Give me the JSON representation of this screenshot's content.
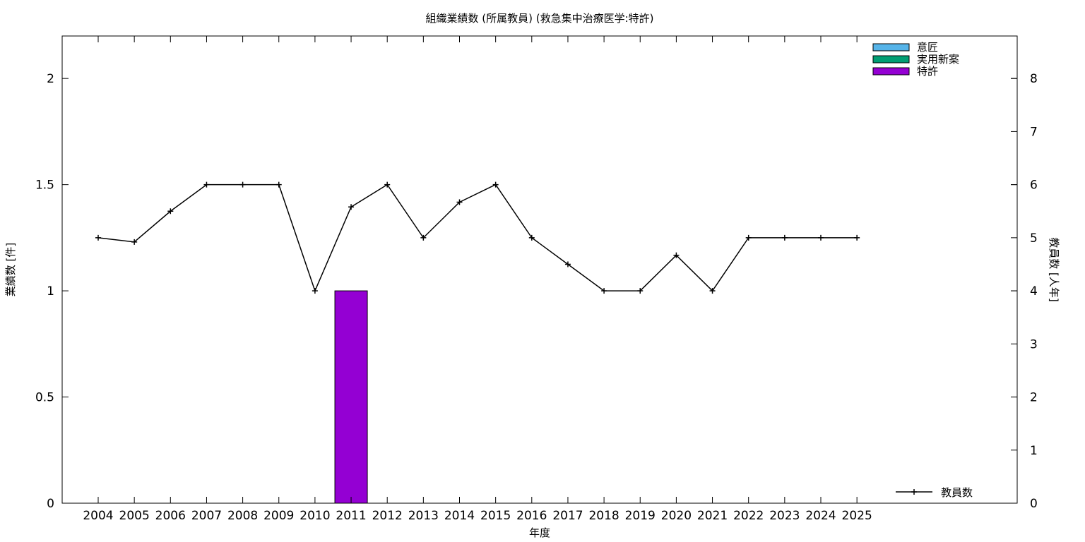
{
  "chart_data": {
    "type": "bar",
    "title": "組織業績数 (所属教員) (救急集中治療医学:特許)",
    "xlabel": "年度",
    "ylabel": "業績数 [件]",
    "y2label": "教員数 [人年]",
    "ylim": [
      0,
      2.2
    ],
    "y2lim": [
      0,
      8.8
    ],
    "yticks": [
      "0",
      "0.5",
      "1",
      "1.5",
      "2"
    ],
    "y2ticks": [
      "0",
      "1",
      "2",
      "3",
      "4",
      "5",
      "6",
      "7",
      "8"
    ],
    "categories": [
      "2004",
      "2005",
      "2006",
      "2007",
      "2008",
      "2009",
      "2010",
      "2011",
      "2012",
      "2013",
      "2014",
      "2015",
      "2016",
      "2017",
      "2018",
      "2019",
      "2020",
      "2021",
      "2022",
      "2023",
      "2024",
      "2025"
    ],
    "bar_series": [
      {
        "name": "意匠",
        "color": "#56b4e9",
        "values": [
          0,
          0,
          0,
          0,
          0,
          0,
          0,
          0,
          0,
          0,
          0,
          0,
          0,
          0,
          0,
          0,
          0,
          0,
          0,
          0,
          0,
          0
        ]
      },
      {
        "name": "実用新案",
        "color": "#009e73",
        "values": [
          0,
          0,
          0,
          0,
          0,
          0,
          0,
          0,
          0,
          0,
          0,
          0,
          0,
          0,
          0,
          0,
          0,
          0,
          0,
          0,
          0,
          0
        ]
      },
      {
        "name": "特許",
        "color": "#9400d3",
        "values": [
          0,
          0,
          0,
          0,
          0,
          0,
          0,
          1,
          0,
          0,
          0,
          0,
          0,
          0,
          0,
          0,
          0,
          0,
          0,
          0,
          0,
          0
        ]
      }
    ],
    "line_series": {
      "name": "教員数",
      "color": "#000000",
      "axis": "right",
      "values": [
        5,
        4.92,
        5.5,
        6,
        6,
        6,
        4,
        5.58,
        6,
        5,
        5.67,
        6,
        5,
        4.5,
        4,
        4,
        4.67,
        4,
        5,
        5,
        5,
        5
      ]
    },
    "legend_position": "top-right",
    "line_legend_position": "bottom-right",
    "grid": false
  }
}
